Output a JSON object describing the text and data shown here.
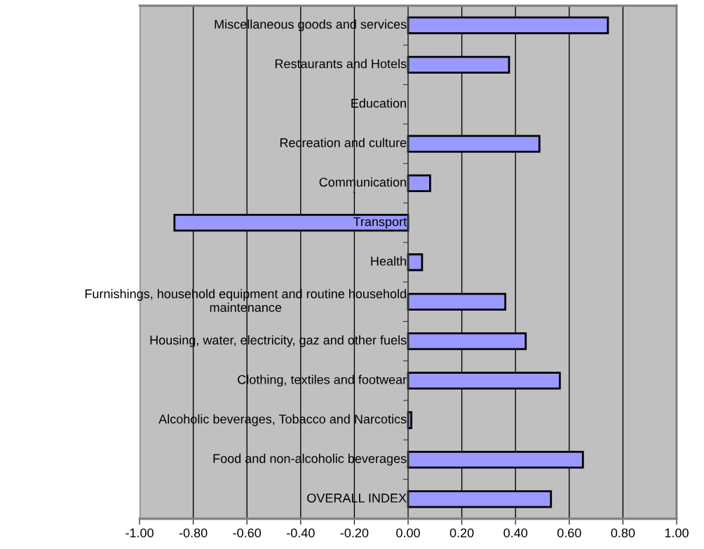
{
  "chart_data": {
    "type": "bar",
    "orientation": "horizontal",
    "categories": [
      "Miscellaneous goods and services",
      "Restaurants and Hotels",
      "Education",
      "Recreation and culture",
      "Communication",
      "Transport",
      "Health",
      "Furnishings, household equipment and routine household\nmaintenance",
      "Housing, water, electricity, gaz and other fuels",
      "Clothing, textiles and footwear",
      "Alcoholic beverages, Tobacco and Narcotics",
      "Food and non-alcoholic beverages",
      "OVERALL INDEX"
    ],
    "values": [
      0.744,
      0.376,
      null,
      0.489,
      0.082,
      -0.87,
      0.052,
      0.362,
      0.438,
      0.565,
      0.012,
      0.651,
      0.532
    ],
    "color": "#9999ff",
    "xlim": [
      -1,
      1
    ],
    "xticks": [
      {
        "value": -1,
        "label": "-1.00"
      },
      {
        "value": -0.8,
        "label": "-0.80"
      },
      {
        "value": -0.6,
        "label": "-0.60"
      },
      {
        "value": -0.4,
        "label": "-0.40"
      },
      {
        "value": -0.2,
        "label": "-0.20"
      },
      {
        "value": 0,
        "label": "0.00"
      },
      {
        "value": 0.2,
        "label": "0.20"
      },
      {
        "value": 0.4,
        "label": "0.40"
      },
      {
        "value": 0.6,
        "label": "0.60"
      },
      {
        "value": 0.8,
        "label": "0.80"
      },
      {
        "value": 1,
        "label": "1.00"
      }
    ],
    "grid": "x",
    "annotations": [
      "`"
    ]
  }
}
